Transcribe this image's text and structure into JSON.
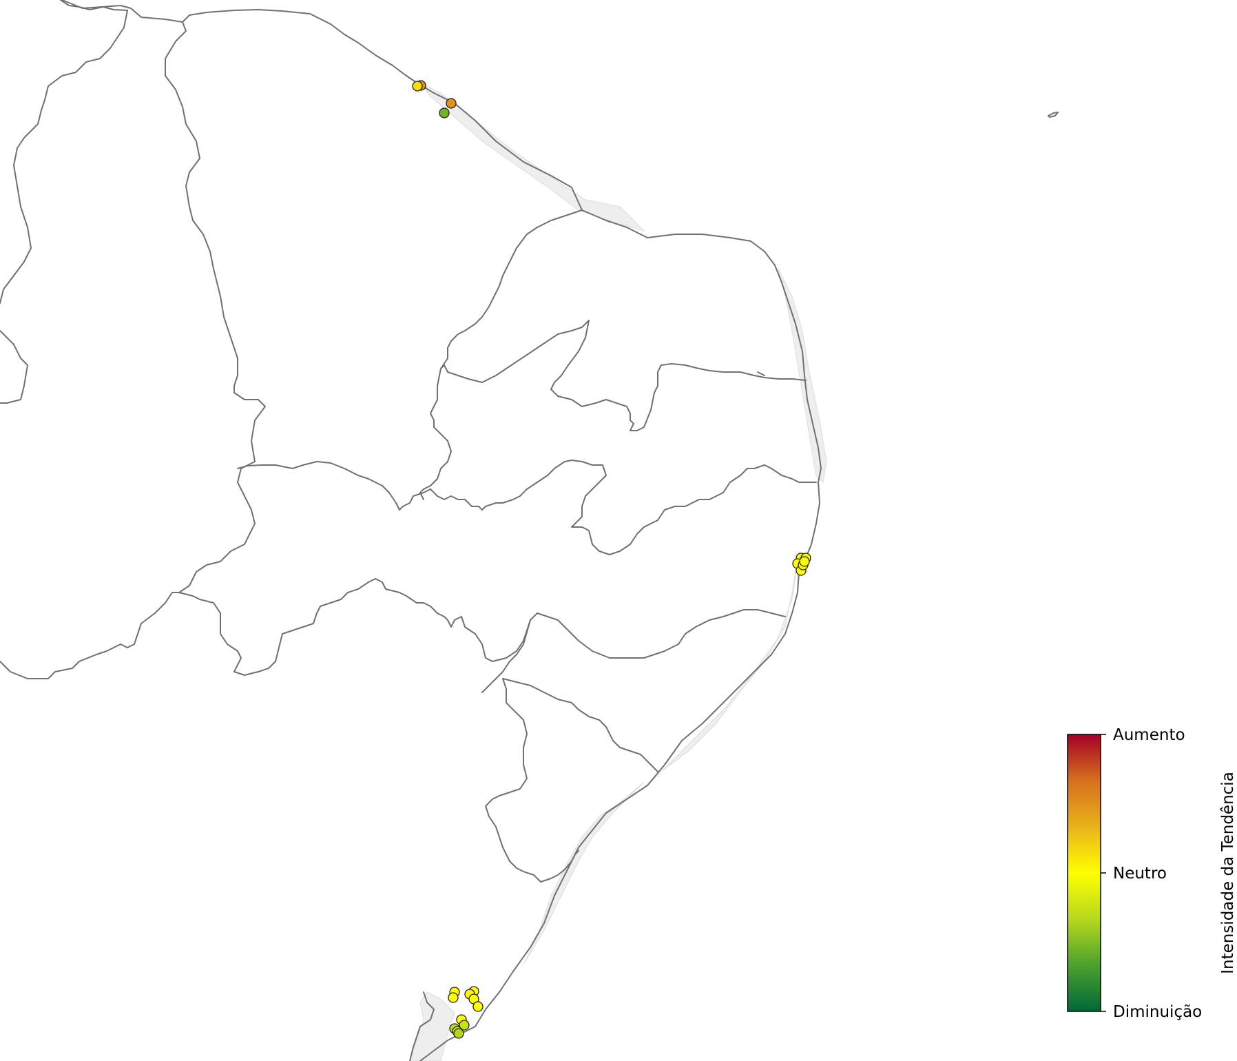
{
  "colorbar": {
    "title": "Intensidade da Tendência",
    "ticks": [
      {
        "label": "Aumento",
        "value": 1
      },
      {
        "label": "Neutro",
        "value": 0
      },
      {
        "label": "Diminuição",
        "value": -1
      }
    ],
    "range": [
      -1,
      1
    ],
    "colors": [
      "#006837",
      "#4ca12e",
      "#b7d81e",
      "#ffff00",
      "#e8b21a",
      "#d6701e",
      "#a50026"
    ]
  },
  "map": {
    "land_color": "#ffffff",
    "border_color": "#707070",
    "shelf_color": "#eeeeee",
    "marker_edge_color": "#222222"
  },
  "clusters": [
    {
      "id": "north-coast-cluster",
      "trend_values": [
        0.5,
        0.15,
        0.5,
        -0.55
      ]
    },
    {
      "id": "east-coast-cluster",
      "trend_values": [
        0.02,
        0.03,
        0.0,
        0.01,
        0.02,
        0.0
      ]
    },
    {
      "id": "south-coast-cluster",
      "trend_values": [
        0.02,
        0.0,
        0.01,
        0.03,
        0.0,
        0.0,
        0.01,
        -0.25,
        -0.3,
        -0.2,
        -0.35
      ]
    }
  ]
}
